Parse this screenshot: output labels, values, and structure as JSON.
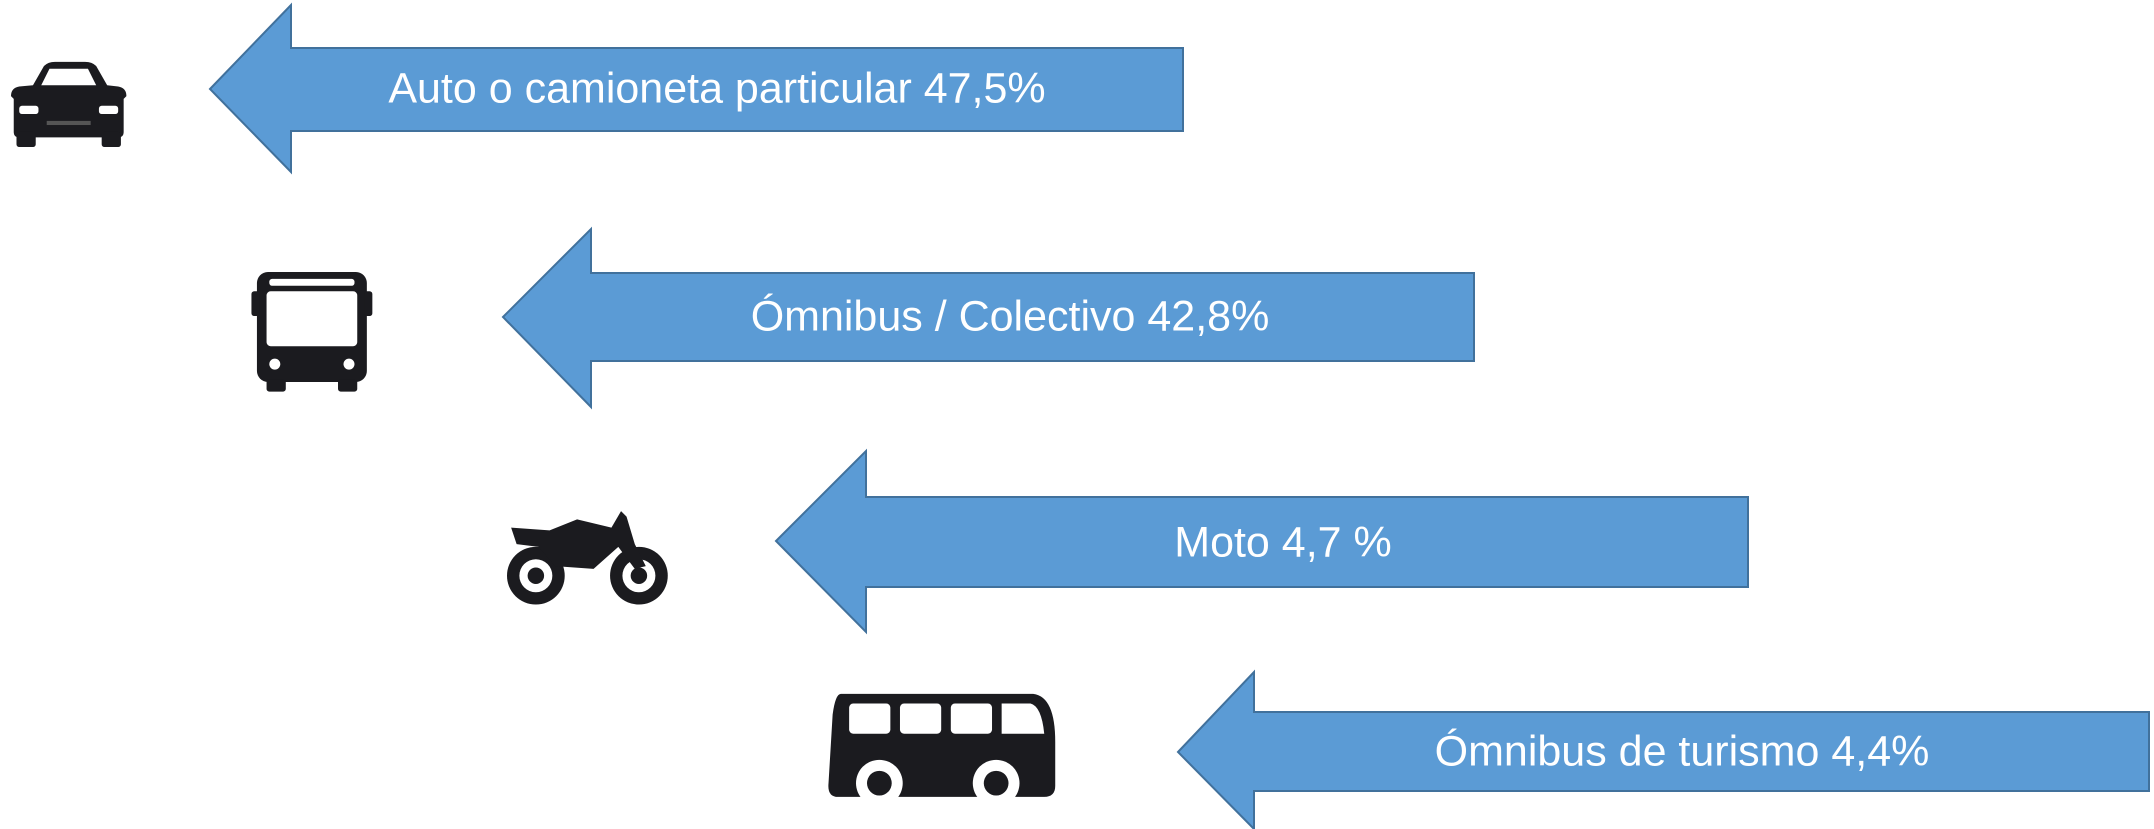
{
  "items": [
    {
      "label": "Auto o camioneta particular 47,5%"
    },
    {
      "label": "Ómnibus / Colectivo 42,8%"
    },
    {
      "label": "Moto 4,7 %"
    },
    {
      "label": "Ómnibus de turismo 4,4%"
    }
  ]
}
